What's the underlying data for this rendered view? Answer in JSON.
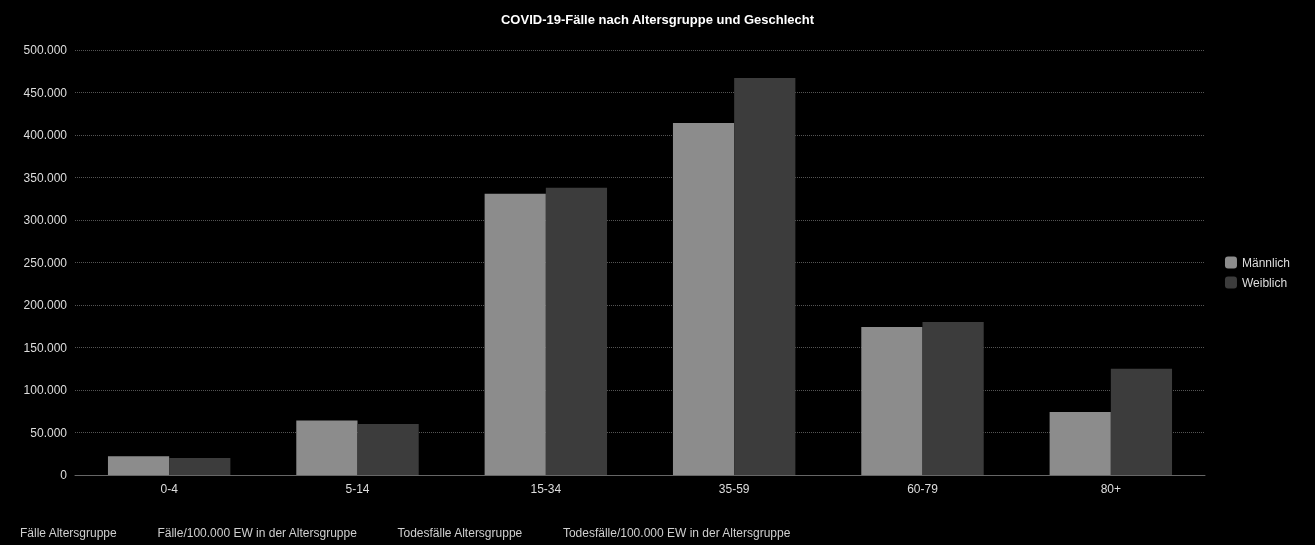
{
  "chart_data": {
    "type": "bar",
    "title": "COVID-19-Fälle nach Altersgruppe und Geschlecht",
    "categories": [
      "0-4",
      "5-14",
      "15-34",
      "35-59",
      "60-79",
      "80+"
    ],
    "series": [
      {
        "name": "Männlich",
        "color": "#8c8c8c",
        "values": [
          22000,
          64000,
          331000,
          414000,
          174000,
          74000
        ]
      },
      {
        "name": "Weiblich",
        "color": "#3c3c3c",
        "values": [
          20000,
          60000,
          338000,
          467000,
          180000,
          125000
        ]
      }
    ],
    "ylim": [
      0,
      500000
    ],
    "yticks": [
      {
        "value": 0,
        "label": "0"
      },
      {
        "value": 50000,
        "label": "50.000"
      },
      {
        "value": 100000,
        "label": "100.000"
      },
      {
        "value": 150000,
        "label": "150.000"
      },
      {
        "value": 200000,
        "label": "200.000"
      },
      {
        "value": 250000,
        "label": "250.000"
      },
      {
        "value": 300000,
        "label": "300.000"
      },
      {
        "value": 350000,
        "label": "350.000"
      },
      {
        "value": 400000,
        "label": "400.000"
      },
      {
        "value": 450000,
        "label": "450.000"
      },
      {
        "value": 500000,
        "label": "500.000"
      }
    ],
    "grid": "y",
    "legend": "right",
    "annotations": [
      "Fälle Altersgruppe",
      "Fälle/100.000 EW in der Altersgruppe",
      "Todesfälle Altersgruppe",
      "Todesfälle/100.000 EW in der Altersgruppe"
    ]
  }
}
